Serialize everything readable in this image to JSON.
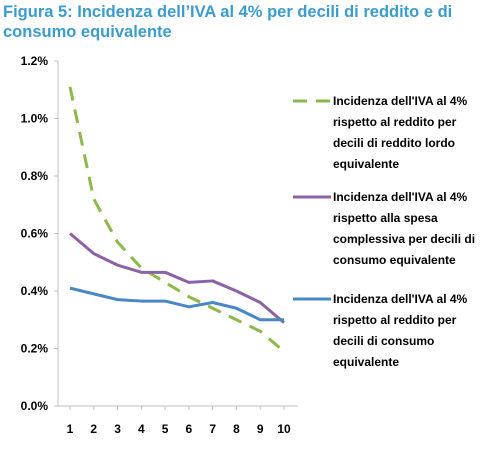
{
  "title": "Figura 5: Incidenza dell’IVA al 4% per decili di reddito e di consumo equivalente",
  "chart_data": {
    "type": "line",
    "title": "Figura 5: Incidenza dell’IVA al 4% per decili di reddito e di consumo equivalente",
    "xlabel": "",
    "ylabel": "",
    "x": [
      1,
      2,
      3,
      4,
      5,
      6,
      7,
      8,
      9,
      10
    ],
    "x_tick_labels": [
      "1",
      "2",
      "3",
      "4",
      "5",
      "6",
      "7",
      "8",
      "9",
      "10"
    ],
    "ylim": [
      0,
      1.2
    ],
    "y_ticks": [
      0,
      0.2,
      0.4,
      0.6,
      0.8,
      1.0,
      1.2
    ],
    "y_tick_labels": [
      "0.0%",
      "0.2%",
      "0.4%",
      "0.6%",
      "0.8%",
      "1.0%",
      "1.2%"
    ],
    "grid": false,
    "legend_position": "right",
    "series": [
      {
        "name": "Incidenza dell'IVA al 4% rispetto al reddito per decili di reddito lordo equivalente",
        "legend_lines": [
          "Incidenza dell'IVA al 4%",
          "rispetto al reddito per",
          "decili di reddito lordo",
          "equivalente"
        ],
        "values": [
          1.11,
          0.72,
          0.57,
          0.48,
          0.43,
          0.38,
          0.34,
          0.3,
          0.26,
          0.19
        ],
        "color": "#8db84a",
        "style": "dashed"
      },
      {
        "name": "Incidenza dell'IVA al 4% rispetto alla spesa complessiva per decili di consumo equivalente",
        "legend_lines": [
          "Incidenza dell'IVA al 4%",
          "rispetto alla spesa",
          "complessiva per decili di",
          "consumo equivalente"
        ],
        "values": [
          0.6,
          0.53,
          0.49,
          0.465,
          0.465,
          0.43,
          0.435,
          0.4,
          0.36,
          0.29
        ],
        "color": "#8b62a6",
        "style": "solid"
      },
      {
        "name": "Incidenza dell'IVA al 4% rispetto al reddito per decili di consumo equivalente",
        "legend_lines": [
          "Incidenza dell'IVA al 4%",
          "rispetto al reddito per",
          "decili di consumo",
          "equivalente"
        ],
        "values": [
          0.41,
          0.39,
          0.37,
          0.365,
          0.365,
          0.345,
          0.36,
          0.34,
          0.3,
          0.3
        ],
        "color": "#4a87c5",
        "style": "solid"
      }
    ]
  }
}
